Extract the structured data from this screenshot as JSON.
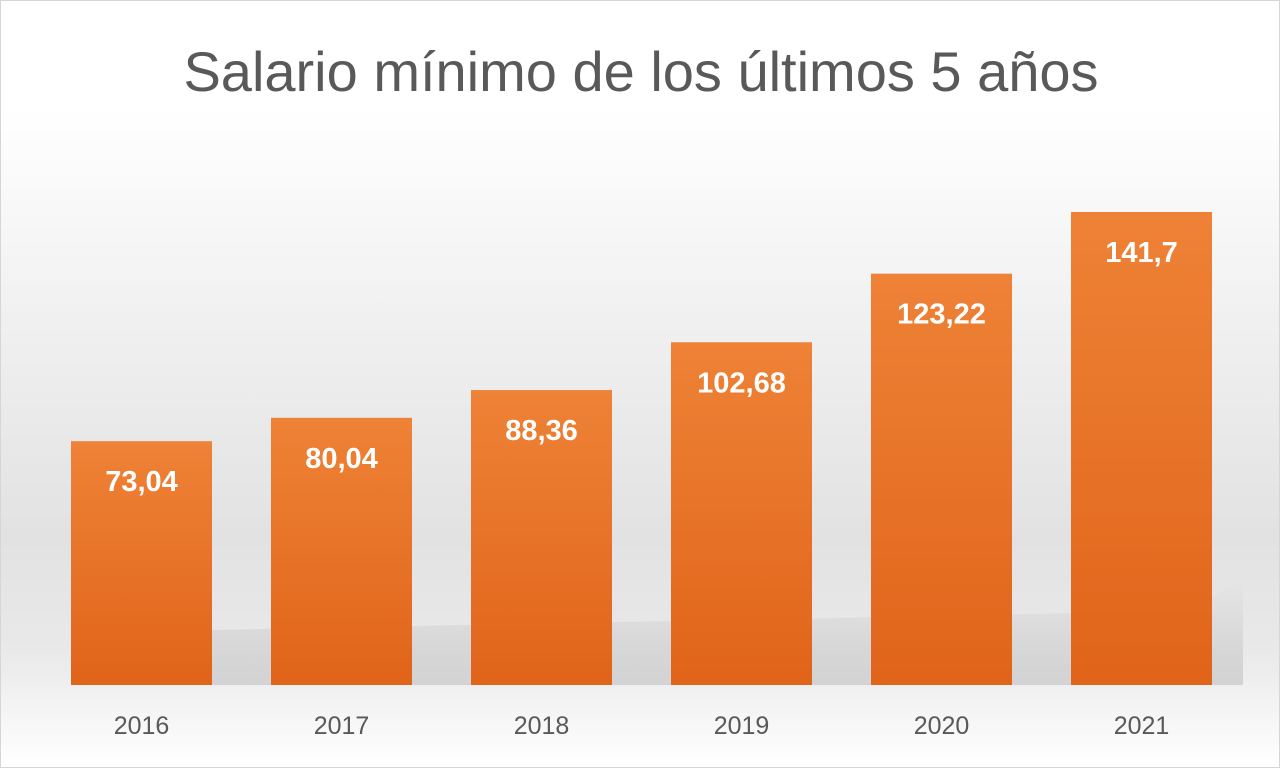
{
  "chart_data": {
    "type": "bar",
    "title": "Salario mínimo de los últimos 5 años",
    "categories": [
      "2016",
      "2017",
      "2018",
      "2019",
      "2020",
      "2021"
    ],
    "values": [
      73.04,
      80.04,
      88.36,
      102.68,
      123.22,
      141.7
    ],
    "value_labels": [
      "73,04",
      "80,04",
      "88,36",
      "102,68",
      "123,22",
      "141,7"
    ],
    "xlabel": "",
    "ylabel": "",
    "ylim": [
      0,
      160
    ],
    "grid": false,
    "legend": "none",
    "colors": {
      "bar_top": "#ee8236",
      "bar_bottom": "#e0641a",
      "text": "#595959"
    }
  }
}
